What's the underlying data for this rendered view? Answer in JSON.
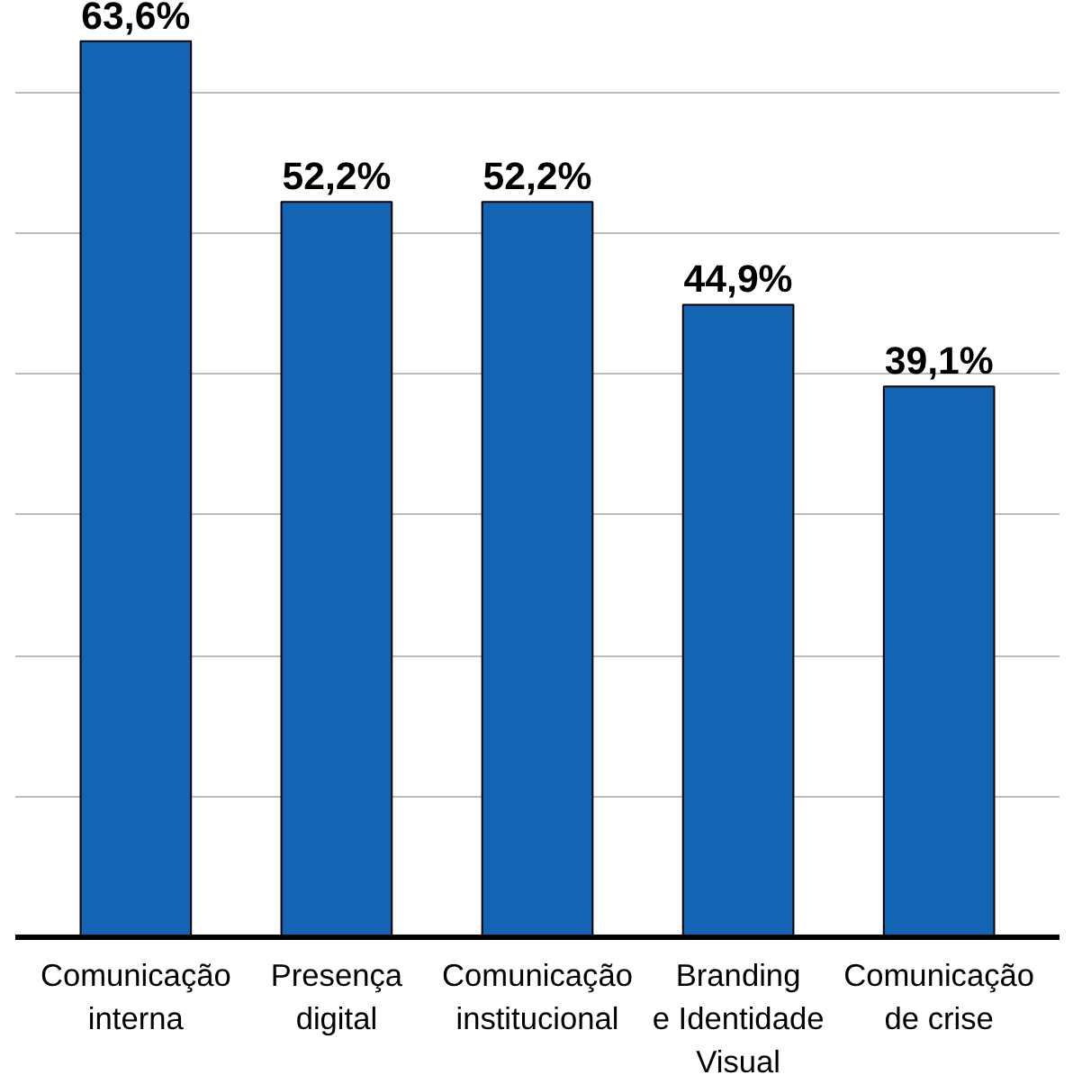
{
  "chart_data": {
    "type": "bar",
    "categories": [
      "Comunicação\ninterna",
      "Presença\ndigital",
      "Comunicação\ninstitucional",
      "Branding\ne Identidade\nVisual",
      "Comunicação\nde crise"
    ],
    "values": [
      63.6,
      52.2,
      52.2,
      44.9,
      39.1
    ],
    "value_labels": [
      "63,6%",
      "52,2%",
      "52,2%",
      "44,9%",
      "39,1%"
    ],
    "color": "#1464b4",
    "yticks": [
      {
        "value": 0,
        "label": null
      },
      {
        "value": 10,
        "label": null
      },
      {
        "value": 20,
        "label": null
      },
      {
        "value": 30,
        "label": null
      },
      {
        "value": 40,
        "label": null
      },
      {
        "value": 50,
        "label": null
      },
      {
        "value": 60,
        "label": null
      }
    ],
    "tick_labels": "x",
    "grid": "y"
  }
}
